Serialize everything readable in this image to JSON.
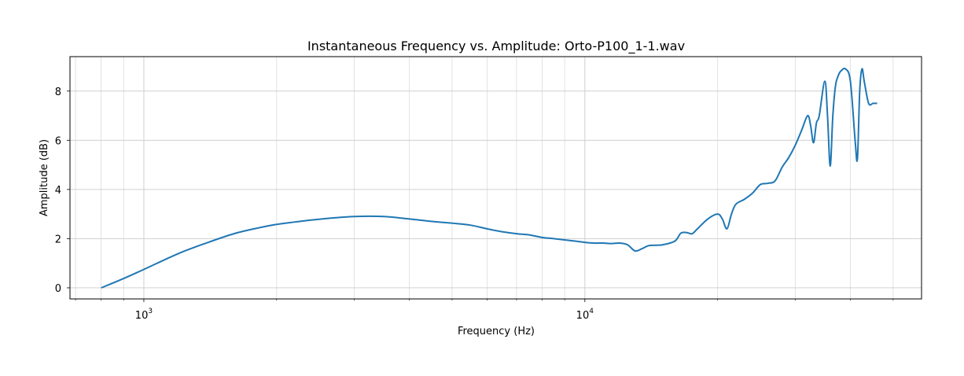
{
  "chart_data": {
    "type": "line",
    "title": "Instantaneous Frequency vs. Amplitude: Orto-P100_1-1.wav",
    "xlabel": "Frequency (Hz)",
    "ylabel": "Amplitude (dB)",
    "xscale": "log",
    "xlim": [
      680,
      58000
    ],
    "ylim": [
      -0.45,
      9.4
    ],
    "grid": true,
    "x_major_ticks": [
      {
        "value": 1000,
        "base": "10",
        "exp": "3"
      },
      {
        "value": 10000,
        "base": "10",
        "exp": "4"
      }
    ],
    "x_minor_ticks": [
      700,
      800,
      900,
      2000,
      3000,
      4000,
      5000,
      6000,
      7000,
      8000,
      9000,
      20000,
      30000,
      40000,
      50000
    ],
    "y_ticks": [
      0,
      2,
      4,
      6,
      8
    ],
    "series": [
      {
        "color": "#1f77b4",
        "x": [
          800,
          900,
          1000,
          1200,
          1400,
          1600,
          1800,
          2000,
          2300,
          2600,
          3000,
          3500,
          4000,
          4500,
          5000,
          5500,
          6000,
          6500,
          7000,
          7500,
          8000,
          8500,
          9000,
          9500,
          10000,
          10500,
          11000,
          11500,
          12000,
          12500,
          13000,
          13500,
          14000,
          15000,
          16000,
          16500,
          17000,
          17500,
          18000,
          19000,
          20000,
          20500,
          21000,
          21500,
          22000,
          23000,
          24000,
          25000,
          26000,
          27000,
          28000,
          29000,
          30000,
          31000,
          32000,
          32500,
          33000,
          33500,
          34000,
          35000,
          35500,
          36000,
          36500,
          37000,
          37500,
          38000,
          39000,
          40000,
          41000,
          41500,
          42000,
          42500,
          43000,
          44000,
          45000,
          45500,
          46000
        ],
        "y": [
          0,
          0.38,
          0.75,
          1.4,
          1.85,
          2.2,
          2.42,
          2.58,
          2.72,
          2.82,
          2.9,
          2.9,
          2.8,
          2.7,
          2.63,
          2.55,
          2.4,
          2.28,
          2.2,
          2.15,
          2.05,
          2.0,
          1.95,
          1.9,
          1.85,
          1.82,
          1.82,
          1.8,
          1.82,
          1.75,
          1.5,
          1.6,
          1.72,
          1.75,
          1.9,
          2.22,
          2.25,
          2.2,
          2.4,
          2.8,
          3.0,
          2.8,
          2.4,
          3.0,
          3.4,
          3.6,
          3.85,
          4.2,
          4.25,
          4.35,
          4.9,
          5.3,
          5.8,
          6.4,
          7.0,
          6.6,
          5.9,
          6.7,
          7.0,
          8.4,
          7.0,
          4.95,
          7.0,
          8.2,
          8.6,
          8.8,
          8.9,
          8.4,
          6.0,
          5.25,
          8.0,
          8.9,
          8.4,
          7.5,
          7.5,
          7.5,
          7.5
        ]
      }
    ]
  }
}
